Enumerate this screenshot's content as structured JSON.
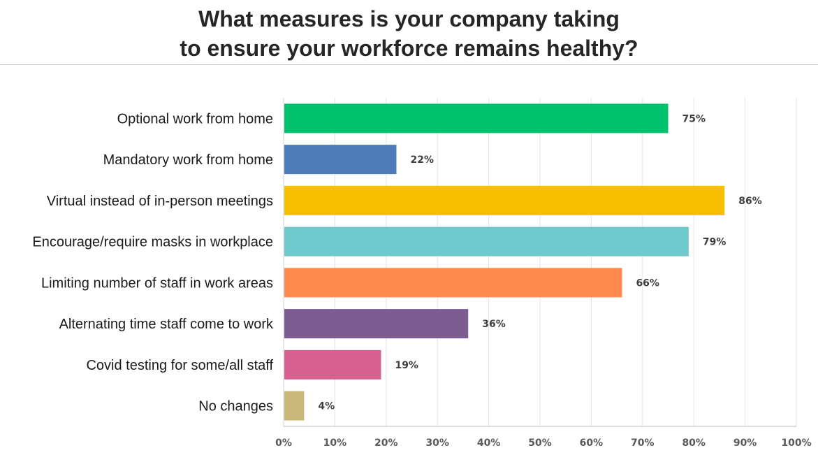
{
  "chart_data": {
    "type": "bar",
    "orientation": "horizontal",
    "title_lines": [
      "What measures is your company taking",
      "to ensure your workforce remains healthy?"
    ],
    "categories": [
      "Optional work from home",
      "Mandatory work from home",
      "Virtual instead of in-person meetings",
      "Encourage/require masks in workplace",
      "Limiting number of staff in work areas",
      "Alternating time staff come to work",
      "Covid testing for some/all staff",
      "No changes"
    ],
    "values": [
      75,
      22,
      86,
      79,
      66,
      36,
      19,
      4
    ],
    "value_labels": [
      "75%",
      "22%",
      "86%",
      "79%",
      "66%",
      "36%",
      "19%",
      "4%"
    ],
    "colors": [
      "#00c26f",
      "#4f7cb8",
      "#f7bf00",
      "#6ec8cc",
      "#ff8a4d",
      "#7d5c91",
      "#d7608f",
      "#c9b87a"
    ],
    "xlim": [
      0,
      100
    ],
    "xticks": [
      0,
      10,
      20,
      30,
      40,
      50,
      60,
      70,
      80,
      90,
      100
    ],
    "xtick_labels": [
      "0%",
      "10%",
      "20%",
      "30%",
      "40%",
      "50%",
      "60%",
      "70%",
      "80%",
      "90%",
      "100%"
    ],
    "xlabel": "",
    "ylabel": "",
    "grid": true,
    "legend": "none"
  }
}
